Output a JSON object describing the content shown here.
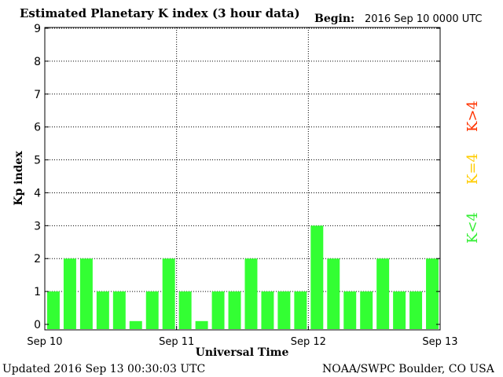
{
  "chart_data": {
    "type": "bar",
    "title": "Estimated Planetary K index (3 hour data)",
    "begin_label": "Begin:",
    "begin_value": "2016 Sep 10 0000 UTC",
    "ylabel": "Kp index",
    "xlabel": "Universal Time",
    "ylim": [
      0,
      9
    ],
    "yticks": [
      "0",
      "1",
      "2",
      "3",
      "4",
      "5",
      "6",
      "7",
      "8",
      "9"
    ],
    "xticks": [
      "Sep 10",
      "Sep 11",
      "Sep 12",
      "Sep 13"
    ],
    "grid": true,
    "values": [
      1,
      2,
      2,
      1,
      1,
      0.1,
      1,
      2,
      1,
      0.1,
      1,
      1,
      2,
      1,
      1,
      1,
      3,
      2,
      1,
      1,
      2,
      1,
      1,
      2
    ],
    "bar_color": "#33ff33",
    "legend": [
      {
        "label": "K<4",
        "color": "#33ee33"
      },
      {
        "label": "K=4",
        "color": "#ffcc00"
      },
      {
        "label": "K>4",
        "color": "#ff3300"
      }
    ]
  },
  "footer": {
    "updated": "Updated 2016 Sep 13 00:30:03 UTC",
    "source": "NOAA/SWPC Boulder, CO USA"
  }
}
